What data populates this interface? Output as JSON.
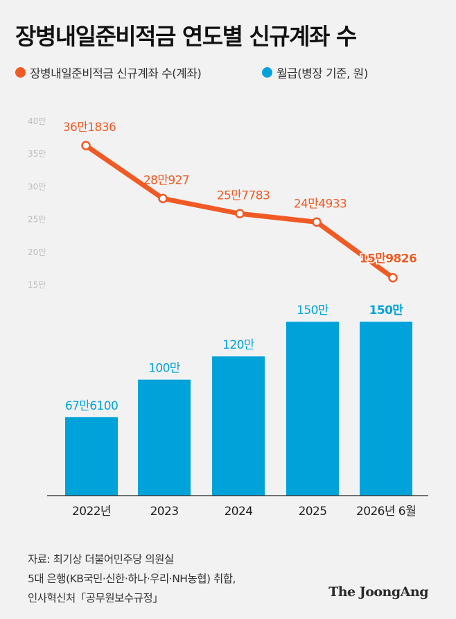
{
  "title": "장병내일준비적금 연도별 신규계좌 수",
  "legend": {
    "line_label": "장병내일준비적금 신규계좌 수(계좌)",
    "bar_label": "월급(병장 기준, 원)"
  },
  "colors": {
    "line": "#f05a24",
    "bar": "#00a3d9",
    "background": "#f2f2f2"
  },
  "chart_data": {
    "type": "bar+line",
    "categories": [
      "2022년",
      "2023",
      "2024",
      "2025",
      "2026년 6월"
    ],
    "line_series": {
      "name": "장병내일준비적금 신규계좌 수(계좌)",
      "values": [
        361836,
        280927,
        257783,
        244933,
        159826
      ],
      "labels": [
        "36만1836",
        "28만927",
        "25만7783",
        "24만4933",
        "15만9826"
      ]
    },
    "bar_series": {
      "name": "월급(병장 기준, 원)",
      "values": [
        676100,
        1000000,
        1200000,
        1500000,
        1500000
      ],
      "labels": [
        "67만6100",
        "100만",
        "120만",
        "150만",
        "150만"
      ]
    },
    "line_axis": {
      "ticks": [
        "15만",
        "20만",
        "25만",
        "30만",
        "35만",
        "40만"
      ],
      "tick_values": [
        150000,
        200000,
        250000,
        300000,
        350000,
        400000
      ],
      "range": [
        150000,
        400000
      ]
    },
    "bar_axis": {
      "range": [
        0,
        1500000
      ]
    }
  },
  "source": {
    "line1": "자료: 최기상 더불어민주당 의원실",
    "line2": "5대 은행(KB국민·신한·하나·우리·NH농협) 취합,",
    "line3": "인사혁신처「공무원보수규정」"
  },
  "brand": "The JoongAng"
}
